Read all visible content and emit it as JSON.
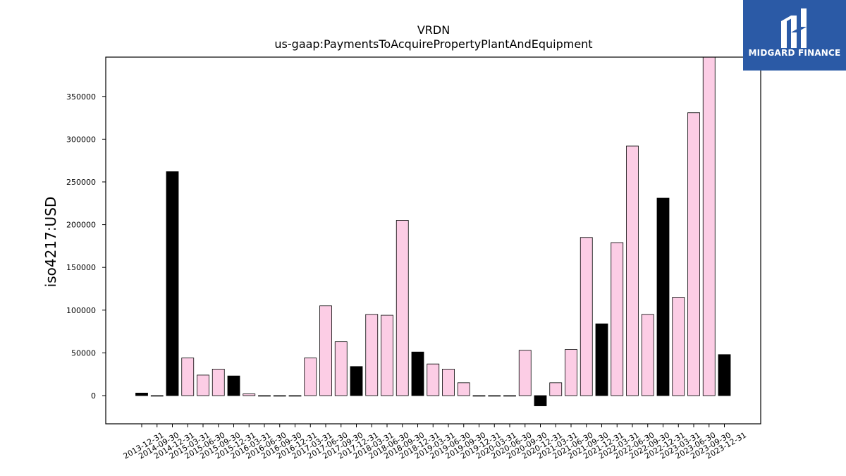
{
  "chart_data": {
    "type": "bar",
    "title": "VRDN",
    "subtitle": "us-gaap:PaymentsToAcquirePropertyPlantAndEquipment",
    "xlabel": "",
    "ylabel": "iso4217:USD",
    "ylim": [
      -33000,
      396000
    ],
    "yticks": [
      0,
      50000,
      100000,
      150000,
      200000,
      250000,
      300000,
      350000
    ],
    "grid": false,
    "categories": [
      "2013-12-31",
      "2014-09-30",
      "2014-12-31",
      "2015-03-31",
      "2015-06-30",
      "2015-09-30",
      "2015-12-31",
      "2016-03-31",
      "2016-06-30",
      "2016-09-30",
      "2016-12-31",
      "2017-03-31",
      "2017-06-30",
      "2017-09-30",
      "2017-12-31",
      "2018-03-31",
      "2018-06-30",
      "2018-09-30",
      "2018-12-31",
      "2019-03-31",
      "2019-06-30",
      "2019-09-30",
      "2019-12-31",
      "2020-03-31",
      "2020-06-30",
      "2020-09-30",
      "2020-12-31",
      "2021-03-31",
      "2021-06-30",
      "2021-09-30",
      "2021-12-31",
      "2022-03-31",
      "2022-06-30",
      "2022-09-30",
      "2022-12-31",
      "2023-03-31",
      "2023-06-30",
      "2023-09-30",
      "2023-12-31"
    ],
    "values": [
      3000,
      0,
      262000,
      44000,
      24000,
      31000,
      23000,
      2000,
      0,
      0,
      0,
      44000,
      105000,
      63000,
      34000,
      95000,
      94000,
      205000,
      51000,
      37000,
      31000,
      15000,
      0,
      0,
      0,
      53000,
      -12000,
      15000,
      54000,
      185000,
      84000,
      179000,
      292000,
      95000,
      231000,
      115000,
      331000,
      396000,
      48000
    ],
    "bar_colors": [
      "#000000",
      "#000000",
      "#000000",
      "#fccde5",
      "#fccde5",
      "#fccde5",
      "#000000",
      "#fccde5",
      "#fccde5",
      "#fccde5",
      "#000000",
      "#fccde5",
      "#fccde5",
      "#fccde5",
      "#000000",
      "#fccde5",
      "#fccde5",
      "#fccde5",
      "#000000",
      "#fccde5",
      "#fccde5",
      "#fccde5",
      "#000000",
      "#fccde5",
      "#fccde5",
      "#fccde5",
      "#000000",
      "#fccde5",
      "#fccde5",
      "#fccde5",
      "#000000",
      "#fccde5",
      "#fccde5",
      "#fccde5",
      "#000000",
      "#fccde5",
      "#fccde5",
      "#fccde5",
      "#000000"
    ]
  },
  "logo": {
    "text": "MIDGARD FINANCE",
    "background": "#2b5aa6"
  }
}
